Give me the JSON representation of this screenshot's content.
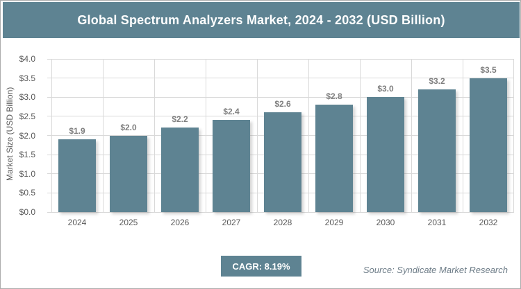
{
  "title": "Global Spectrum Analyzers Market, 2024 - 2032 (USD Billion)",
  "cagr_label": "CAGR: 8.19%",
  "source": "Source: Syndicate Market Research",
  "colors": {
    "accent": "#5E8392",
    "grid": "#D9D9D9",
    "axis_text": "#595959",
    "data_label": "#7F7F7F",
    "source_text": "#6E7D88",
    "frame_border": "#ACACAC",
    "title_text": "#FFFFFF"
  },
  "chart_data": {
    "type": "bar",
    "title": "Global Spectrum Analyzers Market, 2024 - 2032 (USD Billion)",
    "categories": [
      "2024",
      "2025",
      "2026",
      "2027",
      "2028",
      "2029",
      "2030",
      "2031",
      "2032"
    ],
    "values": [
      1.9,
      2.0,
      2.2,
      2.4,
      2.6,
      2.8,
      3.0,
      3.2,
      3.5
    ],
    "data_labels": [
      "$1.9",
      "$2.0",
      "$2.2",
      "$2.4",
      "$2.6",
      "$2.8",
      "$3.0",
      "$3.2",
      "$3.5"
    ],
    "xlabel": "",
    "ylabel": "Market Size (USD Billion)",
    "ylim": [
      0,
      4.0
    ],
    "ytick_step": 0.5,
    "ytick_labels": [
      "$0.0",
      "$0.5",
      "$1.0",
      "$1.5",
      "$2.0",
      "$2.5",
      "$3.0",
      "$3.5",
      "$4.0"
    ],
    "grid": true,
    "legend": false,
    "bar_color": "#5E8392",
    "cagr": "8.19%"
  }
}
